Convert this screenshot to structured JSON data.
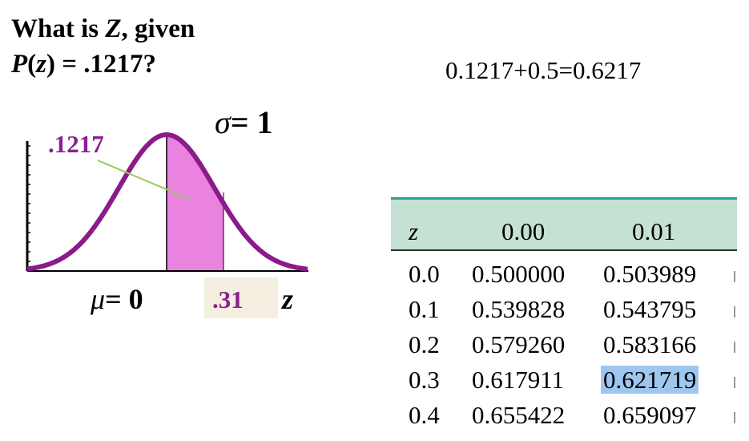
{
  "question": {
    "line1_prefix": "What is ",
    "line1_var": "Z",
    "line1_suffix": ", given",
    "line2_p": "P",
    "line2_open": "(",
    "line2_var": "z",
    "line2_rest": ") = .1217?"
  },
  "calculation": "0.1217+0.5=0.6217",
  "diagram": {
    "sigma_symbol": "σ",
    "sigma_rest": "= 1",
    "area_label": ".1217",
    "mu_symbol": "μ",
    "mu_rest": "= 0",
    "z_value": ".31",
    "z_axis_label": "z",
    "colors": {
      "curve": "#8b1a8b",
      "shade": "#ea82e0",
      "pointer": "#9acb5a",
      "label": "#8b2090"
    }
  },
  "table": {
    "headers": [
      "z",
      "0.00",
      "0.01"
    ],
    "rows": [
      [
        "0.0",
        "0.500000",
        "0.503989"
      ],
      [
        "0.1",
        "0.539828",
        "0.543795"
      ],
      [
        "0.2",
        "0.579260",
        "0.583166"
      ],
      [
        "0.3",
        "0.617911",
        "0.621719"
      ],
      [
        "0.4",
        "0.655422",
        "0.659097"
      ]
    ],
    "highlight": {
      "row": 3,
      "col": 2,
      "color": "#9dc7ef"
    },
    "header_color": "#c5e1d3"
  }
}
